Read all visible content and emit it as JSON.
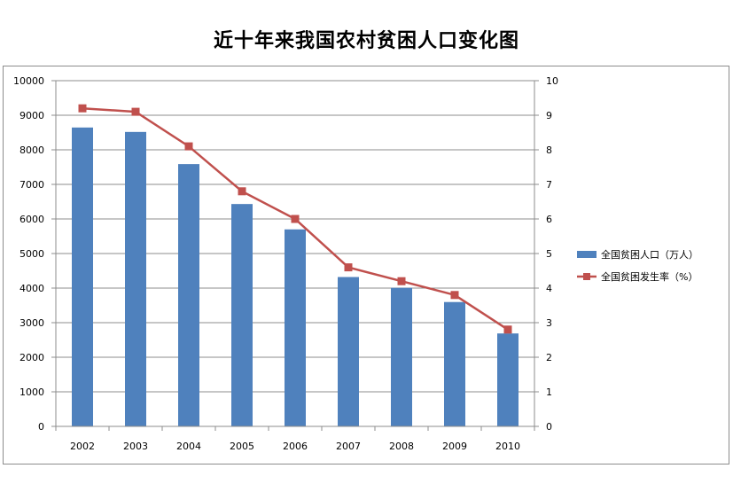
{
  "chart_data": {
    "type": "bar+line",
    "title": "近十年来我国农村贫困人口变化图",
    "categories": [
      "2002",
      "2003",
      "2004",
      "2005",
      "2006",
      "2007",
      "2008",
      "2009",
      "2010"
    ],
    "series": [
      {
        "name": "全国贫困人口（万人）",
        "type": "bar",
        "axis": "left",
        "color": "#4f81bd",
        "values": [
          8645,
          8517,
          7587,
          6432,
          5698,
          4320,
          4007,
          3597,
          2688
        ]
      },
      {
        "name": "全国贫困发生率（%）",
        "type": "line",
        "axis": "right",
        "color": "#c0504d",
        "values": [
          9.2,
          9.1,
          8.1,
          6.8,
          6.0,
          4.6,
          4.2,
          3.8,
          2.8
        ]
      }
    ],
    "y_left": {
      "min": 0,
      "max": 10000,
      "ticks": [
        "0",
        "1000",
        "2000",
        "3000",
        "4000",
        "5000",
        "6000",
        "7000",
        "8000",
        "9000",
        "10000"
      ]
    },
    "y_right": {
      "min": 0,
      "max": 10,
      "ticks": [
        "0",
        "1",
        "2",
        "3",
        "4",
        "5",
        "6",
        "7",
        "8",
        "9",
        "10"
      ]
    },
    "grid": true,
    "legend": "right"
  }
}
